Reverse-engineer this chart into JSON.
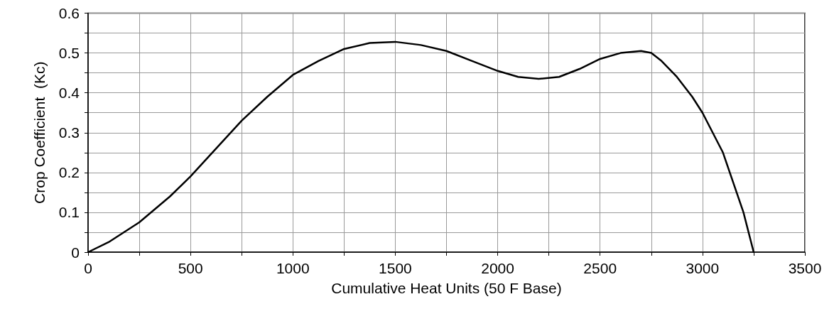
{
  "chart_data": {
    "type": "line",
    "xlabel": "Cumulative Heat Units (50 F Base)",
    "ylabel": "Crop Coefficient  (Kc)",
    "x": [
      0,
      100,
      250,
      400,
      500,
      625,
      750,
      875,
      1000,
      1125,
      1250,
      1375,
      1500,
      1625,
      1750,
      1875,
      2000,
      2100,
      2200,
      2300,
      2400,
      2500,
      2600,
      2700,
      2750,
      2800,
      2875,
      2950,
      3000,
      3100,
      3200,
      3250
    ],
    "series": [
      {
        "color": "#000000",
        "values": [
          0,
          0.025,
          0.075,
          0.14,
          0.19,
          0.26,
          0.33,
          0.39,
          0.445,
          0.48,
          0.51,
          0.525,
          0.528,
          0.52,
          0.505,
          0.48,
          0.455,
          0.44,
          0.435,
          0.44,
          0.46,
          0.485,
          0.5,
          0.505,
          0.5,
          0.48,
          0.44,
          0.39,
          0.35,
          0.25,
          0.1,
          0
        ]
      }
    ],
    "xlim": [
      0,
      3500
    ],
    "xticks": [
      0,
      {
        "value": 250,
        "label": null
      },
      500,
      {
        "value": 750,
        "label": null
      },
      1000,
      {
        "value": 1250,
        "label": null
      },
      1500,
      {
        "value": 1750,
        "label": null
      },
      2000,
      {
        "value": 2250,
        "label": null
      },
      2500,
      {
        "value": 2750,
        "label": null
      },
      3000,
      {
        "value": 3250,
        "label": null
      },
      3500
    ],
    "ylim": [
      0,
      0.6
    ],
    "yticks": [
      0,
      {
        "value": 0.05,
        "label": null
      },
      0.1,
      {
        "value": 0.15,
        "label": null
      },
      0.2,
      {
        "value": 0.25,
        "label": null
      },
      0.3,
      {
        "value": 0.35,
        "label": null
      },
      0.4,
      {
        "value": 0.45,
        "label": null
      },
      0.5,
      {
        "value": 0.55,
        "label": null
      },
      0.6
    ],
    "grid": true,
    "marker": "none",
    "line_style": "solid"
  }
}
